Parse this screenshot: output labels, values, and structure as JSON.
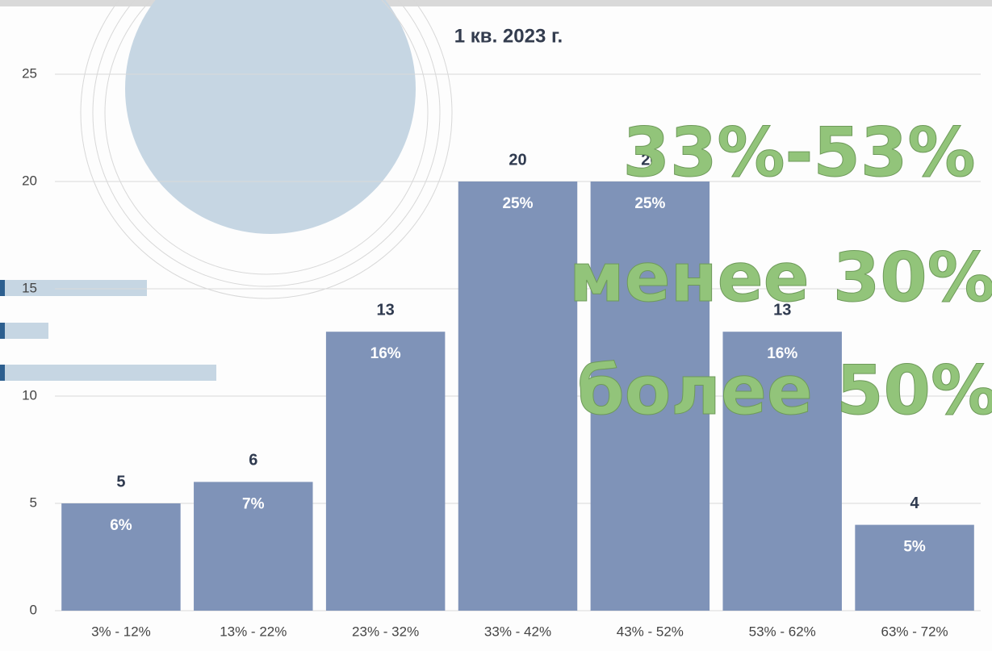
{
  "chart_data": {
    "type": "bar",
    "title": "1 кв. 2023 г.",
    "categories": [
      "3% - 12%",
      "13% - 22%",
      "23% - 32%",
      "33% - 42%",
      "43% - 52%",
      "53% - 62%",
      "63% - 72%"
    ],
    "values": [
      5,
      6,
      13,
      20,
      20,
      13,
      4
    ],
    "share_labels": [
      "6%",
      "7%",
      "16%",
      "25%",
      "25%",
      "16%",
      "5%"
    ],
    "color": "#7f93b8",
    "ylim": [
      0,
      25
    ],
    "yticks": [
      0,
      5,
      10,
      15,
      20,
      25
    ],
    "grid": true,
    "annotations": [
      "33%-53%",
      "менее 30%",
      "более 50%"
    ]
  }
}
